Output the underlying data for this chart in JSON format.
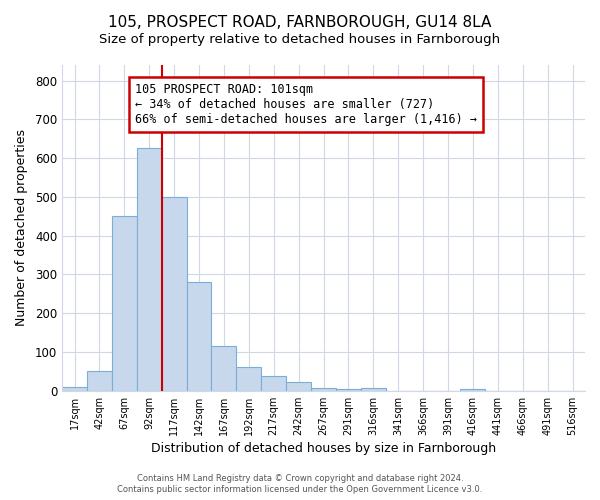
{
  "title": "105, PROSPECT ROAD, FARNBOROUGH, GU14 8LA",
  "subtitle": "Size of property relative to detached houses in Farnborough",
  "xlabel": "Distribution of detached houses by size in Farnborough",
  "ylabel": "Number of detached properties",
  "bar_labels": [
    "17sqm",
    "42sqm",
    "67sqm",
    "92sqm",
    "117sqm",
    "142sqm",
    "167sqm",
    "192sqm",
    "217sqm",
    "242sqm",
    "267sqm",
    "291sqm",
    "316sqm",
    "341sqm",
    "366sqm",
    "391sqm",
    "416sqm",
    "441sqm",
    "466sqm",
    "491sqm",
    "516sqm"
  ],
  "bar_values": [
    10,
    50,
    450,
    625,
    500,
    280,
    115,
    62,
    38,
    22,
    8,
    5,
    8,
    0,
    0,
    0,
    5,
    0,
    0,
    0,
    0
  ],
  "bar_color": "#c8d8ec",
  "bar_edgecolor": "#7aaed6",
  "annotation_text": "105 PROSPECT ROAD: 101sqm\n← 34% of detached houses are smaller (727)\n66% of semi-detached houses are larger (1,416) →",
  "annotation_box_facecolor": "#ffffff",
  "annotation_box_edgecolor": "#cc0000",
  "vline_color": "#cc0000",
  "ylim": [
    0,
    840
  ],
  "yticks": [
    0,
    100,
    200,
    300,
    400,
    500,
    600,
    700,
    800
  ],
  "footer1": "Contains HM Land Registry data © Crown copyright and database right 2024.",
  "footer2": "Contains public sector information licensed under the Open Government Licence v3.0.",
  "bg_color": "#ffffff",
  "plot_bg_color": "#ffffff",
  "grid_color": "#d0d8e8",
  "title_fontsize": 11,
  "subtitle_fontsize": 9.5
}
